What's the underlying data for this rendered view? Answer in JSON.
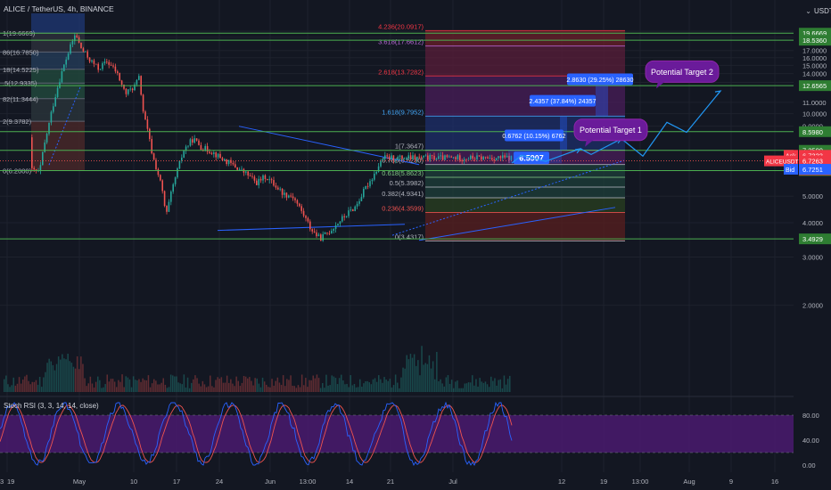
{
  "header": {
    "symbol_title": "ALICE / TetherUS, 4h, BINANCE",
    "currency": "USDT"
  },
  "indicator": {
    "title": "Stoch RSI (3, 3, 14, 14, close)",
    "ticks": [
      "80.00",
      "40.00",
      "0.00"
    ]
  },
  "colors": {
    "background": "#131722",
    "up": "#26a69a",
    "down": "#ef5350",
    "trendline": "#2962ff",
    "fib_line": "#4caf50",
    "label_green": "#2e7d32",
    "label_blue": "#2962ff",
    "label_red": "#f23645",
    "target_bubble": "#6a1b9a",
    "stoch_fill": "#4a1a6e",
    "k_line": "#2962ff",
    "d_line": "#ef5350"
  },
  "chart_data": {
    "type": "candlestick",
    "symbol": "ALICE/USDT",
    "timeframe": "4h",
    "exchange": "BINANCE",
    "y_scale": "log",
    "ylim": [
      1.8,
      21
    ],
    "y_ticks": [
      "20.0000",
      "19.0000",
      "17.0000",
      "16.0000",
      "15.0000",
      "14.0000",
      "13.0000",
      "11.0000",
      "10.0000",
      "9.0000",
      "5.0000",
      "4.0000",
      "3.0000",
      "2.0000"
    ],
    "x_ticks": [
      "19",
      "May",
      "10",
      "17",
      "24",
      "Jun",
      "13:00",
      "14",
      "21",
      "Jul",
      "12",
      "19",
      "13:00",
      "Aug",
      "9",
      "16",
      "23"
    ],
    "price_path": [
      [
        "Apr 21",
        8.2
      ],
      [
        "Apr 23",
        6.3
      ],
      [
        "Apr 26",
        6.1
      ],
      [
        "Apr 28",
        9.0
      ],
      [
        "Apr 30",
        12.5
      ],
      [
        "May 2",
        16.0
      ],
      [
        "May 4",
        19.6
      ],
      [
        "May 5",
        17.5
      ],
      [
        "May 7",
        15.8
      ],
      [
        "May 9",
        14.6
      ],
      [
        "May 11",
        15.5
      ],
      [
        "May 13",
        14.2
      ],
      [
        "May 15",
        11.8
      ],
      [
        "May 17",
        12.6
      ],
      [
        "May 18",
        13.5
      ],
      [
        "May 19",
        10.0
      ],
      [
        "May 21",
        7.0
      ],
      [
        "May 23",
        5.4
      ],
      [
        "May 24",
        4.2
      ],
      [
        "May 26",
        5.8
      ],
      [
        "May 28",
        7.4
      ],
      [
        "May 30",
        8.1
      ],
      [
        "Jun 1",
        7.5
      ],
      [
        "Jun 3",
        7.3
      ],
      [
        "Jun 5",
        6.9
      ],
      [
        "Jun 7",
        6.6
      ],
      [
        "Jun 9",
        6.3
      ],
      [
        "Jun 11",
        6.0
      ],
      [
        "Jun 13",
        5.6
      ],
      [
        "Jun 15",
        5.9
      ],
      [
        "Jun 17",
        5.5
      ],
      [
        "Jun 19",
        5.1
      ],
      [
        "Jun 21",
        5.0
      ],
      [
        "Jun 23",
        4.4
      ],
      [
        "Jun 25",
        3.8
      ],
      [
        "Jun 27",
        3.5
      ],
      [
        "Jun 29",
        3.7
      ],
      [
        "Jul 1",
        4.0
      ],
      [
        "Jul 3",
        4.3
      ],
      [
        "Jul 5",
        4.6
      ],
      [
        "Jul 7",
        5.3
      ],
      [
        "Jul 9",
        6.0
      ],
      [
        "Jul 11",
        6.9
      ]
    ],
    "horizontal_levels": [
      {
        "label": "19.6669",
        "value": 19.6669
      },
      {
        "label": "18.5360",
        "value": 18.536
      },
      {
        "label": "12.6565",
        "value": 12.6565
      },
      {
        "label": "8.5980",
        "value": 8.598
      },
      {
        "label": "7.3500",
        "value": 7.35
      },
      {
        "label": "6.2000",
        "value": 6.2
      },
      {
        "label": "3.4929",
        "value": 3.4929
      }
    ],
    "price_markers": [
      {
        "label": "Ask",
        "value": "6.7323"
      },
      {
        "label": "ALICEUSDT",
        "value": "6.7263",
        "countdown": "01:24:06"
      },
      {
        "label": "Bid",
        "value": "6.7251"
      }
    ],
    "left_fib": [
      {
        "label": "1(19.6669)",
        "value": 19.6669
      },
      {
        "label": "86(16.7850)",
        "value": 16.785
      },
      {
        "label": "18(14.5225)",
        "value": 14.5225
      },
      {
        "label": ".5(12.9335)",
        "value": 12.9335
      },
      {
        "label": "82(11.3444)",
        "value": 11.3444
      },
      {
        "label": "2(9.3782)",
        "value": 9.3782
      },
      {
        "label": "0(6.2000)",
        "value": 6.2
      }
    ],
    "fib_extension": [
      {
        "label": "4.236(20.0917)",
        "value": 20.0917
      },
      {
        "label": "3.618(17.6612)",
        "value": 17.6612
      },
      {
        "label": "2.618(13.7282)",
        "value": 13.7282
      },
      {
        "label": "1.618(9.7952)",
        "value": 9.7952
      },
      {
        "label": "1(7.3647)",
        "value": 7.3647
      },
      {
        "label": "0.786(6.5230)",
        "value": 6.523
      },
      {
        "label": "0.618(5.8623)",
        "value": 5.8623
      },
      {
        "label": "0.5(5.3982)",
        "value": 5.3982
      },
      {
        "label": "0.382(4.9341)",
        "value": 4.9341
      },
      {
        "label": "0.236(4.3599)",
        "value": 4.3599
      },
      {
        "label": "0(3.4317)",
        "value": 3.4317
      }
    ],
    "measurements": [
      {
        "text": "0.6762 (10.15%) 6762"
      },
      {
        "text": "2.4357 (37.84%) 24357"
      },
      {
        "text": "2.8630 (29.25%) 28630"
      }
    ],
    "price_callout": "6.5907",
    "annotations": [
      "Potential Target 1",
      "Potential Target 2"
    ]
  }
}
